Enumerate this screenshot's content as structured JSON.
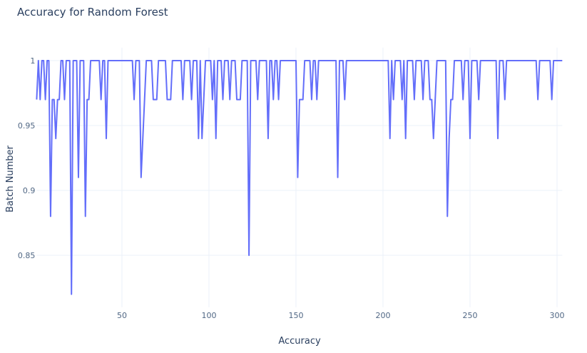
{
  "chart_data": {
    "type": "line",
    "title": "Accuracy for Random Forest",
    "x_label": "Accuracy",
    "y_label": "Batch Number",
    "color": "#636efa",
    "grid": true,
    "xlim": [
      1,
      303
    ],
    "ylim": [
      0.81,
      1.01
    ],
    "xticks": [
      50,
      100,
      150,
      200,
      250,
      300
    ],
    "yticks": [
      0.85,
      0.9,
      0.95,
      1
    ],
    "x": [
      1,
      2,
      3,
      4,
      5,
      6,
      7,
      8,
      9,
      10,
      11,
      12,
      13,
      14,
      15,
      16,
      17,
      18,
      19,
      20,
      21,
      22,
      23,
      24,
      25,
      26,
      27,
      28,
      29,
      30,
      31,
      32,
      33,
      34,
      35,
      36,
      37,
      38,
      39,
      40,
      41,
      42,
      43,
      44,
      45,
      46,
      47,
      48,
      49,
      50,
      51,
      52,
      53,
      54,
      55,
      56,
      57,
      58,
      59,
      60,
      61,
      62,
      63,
      64,
      65,
      66,
      67,
      68,
      69,
      70,
      71,
      72,
      73,
      74,
      75,
      76,
      77,
      78,
      79,
      80,
      81,
      82,
      83,
      84,
      85,
      86,
      87,
      88,
      89,
      90,
      91,
      92,
      93,
      94,
      95,
      96,
      97,
      98,
      99,
      100,
      101,
      102,
      103,
      104,
      105,
      106,
      107,
      108,
      109,
      110,
      111,
      112,
      113,
      114,
      115,
      116,
      117,
      118,
      119,
      120,
      121,
      122,
      123,
      124,
      125,
      126,
      127,
      128,
      129,
      130,
      131,
      132,
      133,
      134,
      135,
      136,
      137,
      138,
      139,
      140,
      141,
      142,
      143,
      144,
      145,
      146,
      147,
      148,
      149,
      150,
      151,
      152,
      153,
      154,
      155,
      156,
      157,
      158,
      159,
      160,
      161,
      162,
      163,
      164,
      165,
      166,
      167,
      168,
      169,
      170,
      171,
      172,
      173,
      174,
      175,
      176,
      177,
      178,
      179,
      180,
      181,
      182,
      183,
      184,
      185,
      186,
      187,
      188,
      189,
      190,
      191,
      192,
      193,
      194,
      195,
      196,
      197,
      198,
      199,
      200,
      201,
      202,
      203,
      204,
      205,
      206,
      207,
      208,
      209,
      210,
      211,
      212,
      213,
      214,
      215,
      216,
      217,
      218,
      219,
      220,
      221,
      222,
      223,
      224,
      225,
      226,
      227,
      228,
      229,
      230,
      231,
      232,
      233,
      234,
      235,
      236,
      237,
      238,
      239,
      240,
      241,
      242,
      243,
      244,
      245,
      246,
      247,
      248,
      249,
      250,
      251,
      252,
      253,
      254,
      255,
      256,
      257,
      258,
      259,
      260,
      261,
      262,
      263,
      264,
      265,
      266,
      267,
      268,
      269,
      270,
      271,
      272,
      273,
      274,
      275,
      276,
      277,
      278,
      279,
      280,
      281,
      282,
      283,
      284,
      285,
      286,
      287,
      288,
      289,
      290,
      291,
      292,
      293,
      294,
      295,
      296,
      297,
      298,
      299,
      300,
      301,
      302,
      303
    ],
    "values": [
      0.97,
      1,
      0.97,
      1,
      1,
      0.97,
      1,
      1,
      0.88,
      0.97,
      0.97,
      0.94,
      0.97,
      0.97,
      1,
      1,
      0.97,
      1,
      1,
      1,
      0.82,
      1,
      1,
      1,
      0.91,
      1,
      1,
      1,
      0.88,
      0.97,
      0.97,
      1,
      1,
      1,
      1,
      1,
      1,
      0.97,
      1,
      1,
      0.94,
      1,
      1,
      1,
      1,
      1,
      1,
      1,
      1,
      1,
      1,
      1,
      1,
      1,
      1,
      1,
      0.97,
      1,
      1,
      1,
      0.91,
      0.94,
      0.97,
      1,
      1,
      1,
      1,
      0.97,
      0.97,
      0.97,
      1,
      1,
      1,
      1,
      1,
      0.97,
      0.97,
      0.97,
      1,
      1,
      1,
      1,
      1,
      1,
      0.97,
      1,
      1,
      1,
      1,
      0.97,
      1,
      1,
      1,
      0.94,
      1,
      0.94,
      0.97,
      1,
      1,
      1,
      1,
      0.97,
      1,
      0.94,
      1,
      1,
      1,
      0.97,
      1,
      1,
      1,
      0.97,
      1,
      1,
      1,
      0.97,
      0.97,
      0.97,
      1,
      1,
      1,
      1,
      0.85,
      1,
      1,
      1,
      1,
      0.97,
      1,
      1,
      1,
      1,
      1,
      0.94,
      1,
      1,
      0.97,
      1,
      1,
      0.97,
      1,
      1,
      1,
      1,
      1,
      1,
      1,
      1,
      1,
      1,
      0.91,
      0.97,
      0.97,
      0.97,
      1,
      1,
      1,
      1,
      0.97,
      1,
      1,
      0.97,
      1,
      1,
      1,
      1,
      1,
      1,
      1,
      1,
      1,
      1,
      1,
      0.91,
      1,
      1,
      1,
      0.97,
      1,
      1,
      1,
      1,
      1,
      1,
      1,
      1,
      1,
      1,
      1,
      1,
      1,
      1,
      1,
      1,
      1,
      1,
      1,
      1,
      1,
      1,
      1,
      1,
      1,
      0.94,
      1,
      0.97,
      1,
      1,
      1,
      1,
      0.97,
      1,
      0.94,
      1,
      1,
      1,
      1,
      0.97,
      1,
      1,
      1,
      1,
      0.97,
      1,
      1,
      1,
      0.97,
      0.97,
      0.94,
      0.97,
      1,
      1,
      1,
      1,
      1,
      1,
      0.88,
      0.94,
      0.97,
      0.97,
      1,
      1,
      1,
      1,
      1,
      0.97,
      1,
      1,
      1,
      0.94,
      1,
      1,
      1,
      1,
      0.97,
      1,
      1,
      1,
      1,
      1,
      1,
      1,
      1,
      1,
      1,
      0.94,
      1,
      1,
      1,
      0.97,
      1,
      1,
      1,
      1,
      1,
      1,
      1,
      1,
      1,
      1,
      1,
      1,
      1,
      1,
      1,
      1,
      1,
      1,
      0.97,
      1,
      1,
      1,
      1,
      1,
      1,
      1,
      0.97,
      1,
      1,
      1,
      1,
      1,
      1
    ]
  }
}
